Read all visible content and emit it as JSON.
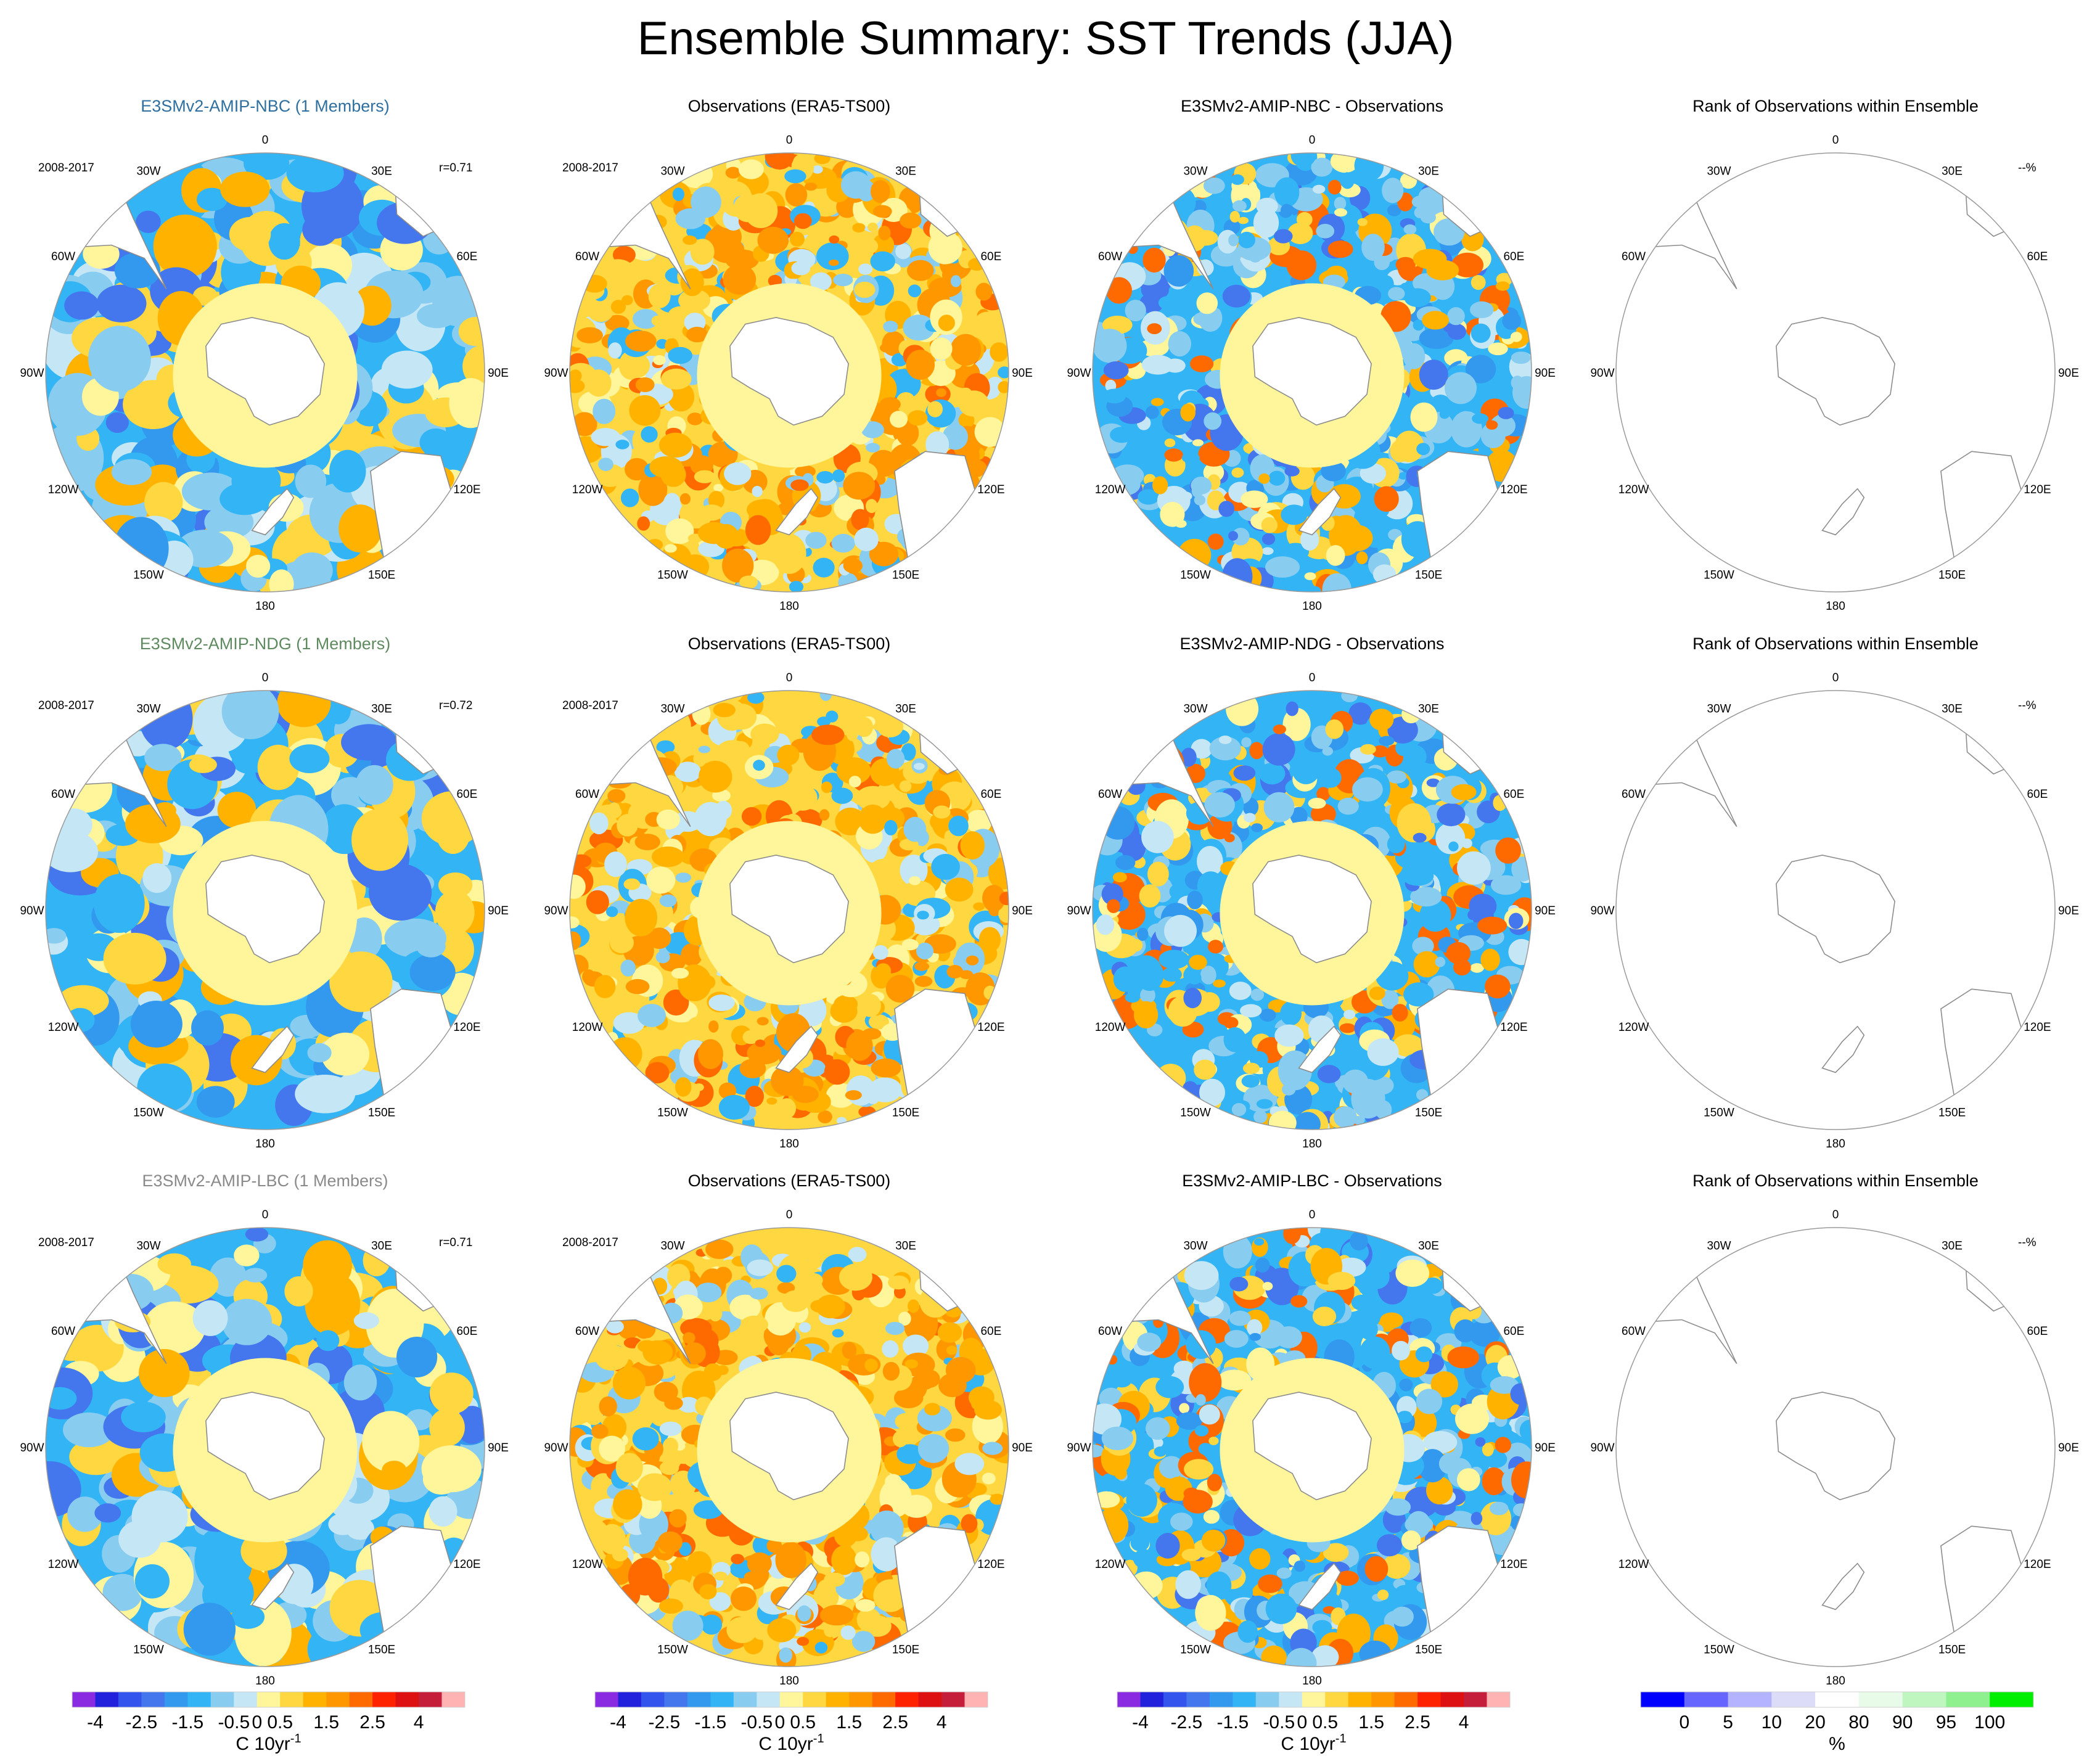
{
  "title": "Ensemble Summary: SST Trends (JJA)",
  "rows": [
    {
      "model": {
        "title": "E3SMv2-AMIP-NBC (1 Members)",
        "title_color": "#2f6f9f",
        "period": "2008-2017",
        "corr": "r=0.71"
      },
      "obs": {
        "title": "Observations (ERA5-TS00)",
        "period": "2008-2017"
      },
      "diff": {
        "title": "E3SMv2-AMIP-NBC - Observations"
      },
      "rank": {
        "title": "Rank of Observations within Ensemble",
        "pct": "--%"
      }
    },
    {
      "model": {
        "title": "E3SMv2-AMIP-NDG (1 Members)",
        "title_color": "#5f8a5f",
        "period": "2008-2017",
        "corr": "r=0.72"
      },
      "obs": {
        "title": "Observations (ERA5-TS00)",
        "period": "2008-2017"
      },
      "diff": {
        "title": "E3SMv2-AMIP-NDG - Observations"
      },
      "rank": {
        "title": "Rank of Observations within Ensemble",
        "pct": "--%"
      }
    },
    {
      "model": {
        "title": "E3SMv2-AMIP-LBC (1 Members)",
        "title_color": "#8a8a8a",
        "period": "2008-2017",
        "corr": "r=0.71"
      },
      "obs": {
        "title": "Observations (ERA5-TS00)",
        "period": "2008-2017"
      },
      "diff": {
        "title": "E3SMv2-AMIP-LBC - Observations"
      },
      "rank": {
        "title": "Rank of Observations within Ensemble",
        "pct": "--%"
      }
    }
  ],
  "longitude_labels": [
    "0",
    "30E",
    "60E",
    "90E",
    "120E",
    "150E",
    "180",
    "150W",
    "120W",
    "90W",
    "60W",
    "30W"
  ],
  "trend_colorbar": {
    "colors": [
      "#8a2be2",
      "#2222dd",
      "#3355ee",
      "#4477ee",
      "#3399ee",
      "#33b5f5",
      "#88ccf0",
      "#c4e6f5",
      "#fff59a",
      "#ffd740",
      "#ffb300",
      "#ff9800",
      "#ff6a00",
      "#ff2200",
      "#dd1111",
      "#c41e3a",
      "#ffb3b3"
    ],
    "tick_labels": [
      "-4",
      "-2.5",
      "-1.5",
      "-0.5",
      "0",
      "0.5",
      "1.5",
      "2.5",
      "4"
    ],
    "tick_positions": [
      1,
      3,
      5,
      7,
      8,
      9,
      11,
      13,
      15
    ],
    "units": "C 10yr",
    "units_exp": "-1"
  },
  "rank_colorbar": {
    "colors": [
      "#0000ff",
      "#6666ff",
      "#b3b3ff",
      "#dcdcf8",
      "#ffffff",
      "#e8fae8",
      "#bff5bf",
      "#8ef08e",
      "#00ee00"
    ],
    "tick_labels": [
      "0",
      "5",
      "10",
      "20",
      "80",
      "90",
      "95",
      "100"
    ],
    "tick_positions": [
      1,
      2,
      3,
      4,
      5,
      6,
      7,
      8
    ],
    "units": "%"
  },
  "chart_data": {
    "type": "heatmap",
    "title": "Ensemble Summary: SST Trends (JJA)",
    "projection": "south polar stereographic",
    "variable": "SST trend",
    "units": "C 10yr-1",
    "season": "JJA",
    "period": "2008-2017",
    "contour_levels": [
      -4,
      -3.5,
      -3,
      -2.5,
      -2,
      -1.5,
      -1,
      -0.5,
      0,
      0.5,
      1,
      1.5,
      2,
      2.5,
      3,
      3.5,
      4
    ],
    "rank_levels_percent": [
      0,
      5,
      10,
      20,
      80,
      90,
      95,
      100
    ],
    "panels": [
      {
        "row": 1,
        "column": "model",
        "name": "E3SMv2-AMIP-NBC",
        "members": 1,
        "pattern_correlation": 0.71
      },
      {
        "row": 1,
        "column": "observations",
        "name": "ERA5-TS00"
      },
      {
        "row": 1,
        "column": "difference",
        "name": "E3SMv2-AMIP-NBC - Observations"
      },
      {
        "row": 1,
        "column": "rank",
        "value": "--%"
      },
      {
        "row": 2,
        "column": "model",
        "name": "E3SMv2-AMIP-NDG",
        "members": 1,
        "pattern_correlation": 0.72
      },
      {
        "row": 2,
        "column": "observations",
        "name": "ERA5-TS00"
      },
      {
        "row": 2,
        "column": "difference",
        "name": "E3SMv2-AMIP-NDG - Observations"
      },
      {
        "row": 2,
        "column": "rank",
        "value": "--%"
      },
      {
        "row": 3,
        "column": "model",
        "name": "E3SMv2-AMIP-LBC",
        "members": 1,
        "pattern_correlation": 0.71
      },
      {
        "row": 3,
        "column": "observations",
        "name": "ERA5-TS00"
      },
      {
        "row": 3,
        "column": "difference",
        "name": "E3SMv2-AMIP-LBC - Observations"
      },
      {
        "row": 3,
        "column": "rank",
        "value": "--%"
      }
    ]
  }
}
